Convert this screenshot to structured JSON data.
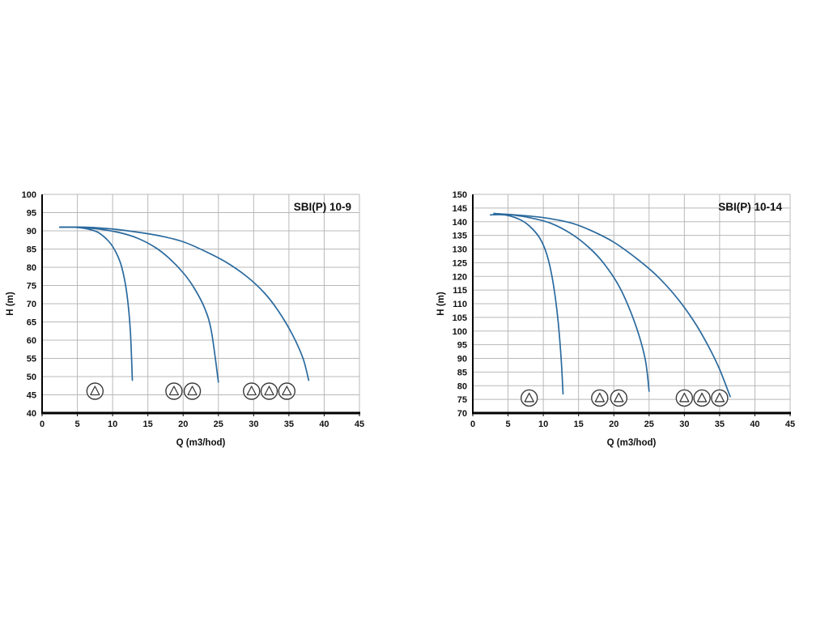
{
  "page": {
    "background": "#ffffff"
  },
  "chart_data": [
    {
      "type": "line",
      "title": "SBI(P) 10-9",
      "xlabel": "Q (m3/hod)",
      "ylabel": "H (m)",
      "xlim": [
        0,
        45
      ],
      "ylim": [
        40,
        100
      ],
      "xtick_step": 5,
      "ytick_step": 5,
      "grid": true,
      "legend": "none",
      "line_color": "#2a6a9e",
      "grid_color": "#b8b8b8",
      "axis_color": "#000000",
      "text_color": "#111111",
      "series": [
        {
          "name": "1-pump-curve",
          "points": [
            [
              2.5,
              91
            ],
            [
              4.5,
              91
            ],
            [
              6.5,
              90.5
            ],
            [
              8,
              89.5
            ],
            [
              9.5,
              87
            ],
            [
              10.5,
              84
            ],
            [
              11.3,
              80
            ],
            [
              12,
              73
            ],
            [
              12.5,
              63
            ],
            [
              12.8,
              49
            ]
          ]
        },
        {
          "name": "2-pump-curve",
          "points": [
            [
              2.5,
              91
            ],
            [
              5,
              91
            ],
            [
              8,
              90.5
            ],
            [
              11,
              89.5
            ],
            [
              13.5,
              88
            ],
            [
              16,
              85.5
            ],
            [
              18,
              82.5
            ],
            [
              20,
              78.5
            ],
            [
              21.5,
              74.5
            ],
            [
              23,
              69
            ],
            [
              24,
              62.5
            ],
            [
              25,
              48.5
            ]
          ]
        },
        {
          "name": "3-pump-curve",
          "points": [
            [
              2.5,
              91
            ],
            [
              6,
              91
            ],
            [
              10,
              90.5
            ],
            [
              14,
              89.5
            ],
            [
              17,
              88.5
            ],
            [
              20,
              87
            ],
            [
              23,
              84.5
            ],
            [
              26,
              81.5
            ],
            [
              29,
              77.5
            ],
            [
              31.5,
              73
            ],
            [
              33.5,
              68
            ],
            [
              35.5,
              61.5
            ],
            [
              37,
              55
            ],
            [
              37.8,
              49
            ]
          ]
        }
      ],
      "pump_icons": {
        "y": 46,
        "groups": [
          [
            7.5
          ],
          [
            18.7,
            21.3
          ],
          [
            29.7,
            32.2,
            34.7
          ]
        ]
      }
    },
    {
      "type": "line",
      "title": "SBI(P) 10-14",
      "xlabel": "Q (m3/hod)",
      "ylabel": "H (m)",
      "xlim": [
        0,
        45
      ],
      "ylim": [
        70,
        150
      ],
      "xtick_step": 5,
      "ytick_step": 5,
      "grid": true,
      "legend": "none",
      "line_color": "#2a6a9e",
      "grid_color": "#b8b8b8",
      "axis_color": "#000000",
      "text_color": "#111111",
      "series": [
        {
          "name": "1-pump-curve",
          "points": [
            [
              2.5,
              142.5
            ],
            [
              4.5,
              142.5
            ],
            [
              6.5,
              141
            ],
            [
              8,
              138.5
            ],
            [
              9.5,
              134
            ],
            [
              10.5,
              128
            ],
            [
              11.3,
              119
            ],
            [
              12,
              106
            ],
            [
              12.5,
              91
            ],
            [
              12.8,
              77
            ]
          ]
        },
        {
          "name": "2-pump-curve",
          "points": [
            [
              3,
              143
            ],
            [
              5.5,
              142.5
            ],
            [
              8,
              141.5
            ],
            [
              11,
              139.5
            ],
            [
              14,
              135.5
            ],
            [
              16.5,
              130.5
            ],
            [
              18.5,
              125
            ],
            [
              20.5,
              117.5
            ],
            [
              22,
              109.5
            ],
            [
              23.5,
              99
            ],
            [
              24.5,
              89
            ],
            [
              25,
              78
            ]
          ]
        },
        {
          "name": "3-pump-curve",
          "points": [
            [
              3,
              143
            ],
            [
              6,
              142.5
            ],
            [
              10,
              141.5
            ],
            [
              14,
              139.5
            ],
            [
              17,
              136.5
            ],
            [
              20,
              132.5
            ],
            [
              23,
              127
            ],
            [
              26,
              120.5
            ],
            [
              29,
              112
            ],
            [
              31.5,
              103
            ],
            [
              33.5,
              94
            ],
            [
              35,
              86
            ],
            [
              36.5,
              76
            ]
          ]
        }
      ],
      "pump_icons": {
        "y": 75.5,
        "groups": [
          [
            8
          ],
          [
            18,
            20.7
          ],
          [
            30,
            32.5,
            35
          ]
        ]
      }
    }
  ]
}
